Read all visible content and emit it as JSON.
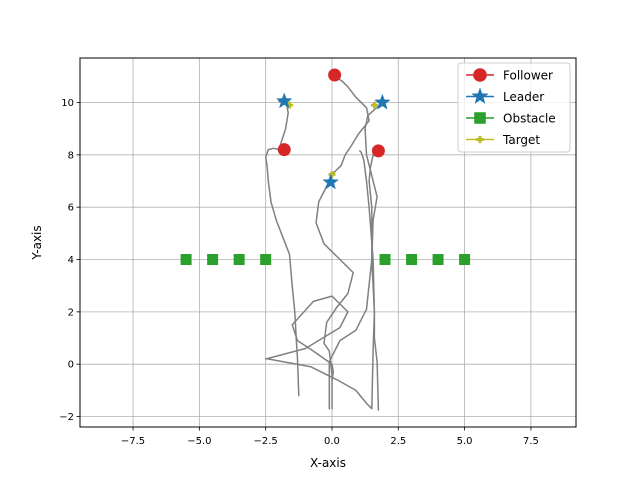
{
  "chart_data": {
    "type": "scatter",
    "title": "",
    "xlabel": "X-axis",
    "ylabel": "Y-axis",
    "xlim": [
      -9.5,
      9.2
    ],
    "ylim": [
      -2.4,
      11.7
    ],
    "xticks": [
      -7.5,
      -5.0,
      -2.5,
      0.0,
      2.5,
      5.0,
      7.5
    ],
    "xtick_labels": [
      "−7.5",
      "−5.0",
      "−2.5",
      "0.0",
      "2.5",
      "5.0",
      "7.5"
    ],
    "yticks": [
      -2,
      0,
      2,
      4,
      6,
      8,
      10
    ],
    "ytick_labels": [
      "−2",
      "0",
      "2",
      "4",
      "6",
      "8",
      "10"
    ],
    "grid": true,
    "legend": {
      "placement": "top-right",
      "entries": [
        {
          "label": "Follower",
          "color": "#d62728",
          "marker": "circle"
        },
        {
          "label": "Leader",
          "color": "#1f77b4",
          "marker": "star"
        },
        {
          "label": "Obstacle",
          "color": "#2ca02c",
          "marker": "square"
        },
        {
          "label": "Target",
          "color": "#bcbd22",
          "marker": "cross"
        }
      ]
    },
    "trajectory_color": "#808080",
    "series": [
      {
        "name": "Follower",
        "color": "#d62728",
        "marker": "circle",
        "x": [
          -1.8,
          0.1,
          1.75
        ],
        "y": [
          8.2,
          11.05,
          8.15
        ]
      },
      {
        "name": "Leader",
        "color": "#1f77b4",
        "marker": "star",
        "x": [
          -1.8,
          1.9,
          -0.05
        ],
        "y": [
          10.05,
          10.0,
          6.95
        ]
      },
      {
        "name": "Obstacle",
        "color": "#2ca02c",
        "marker": "square",
        "x": [
          -5.5,
          -4.5,
          -3.5,
          -2.5,
          2.0,
          3.0,
          4.0,
          5.0
        ],
        "y": [
          4,
          4,
          4,
          4,
          4,
          4,
          4,
          4
        ]
      },
      {
        "name": "Target",
        "color": "#bcbd22",
        "marker": "cross",
        "x": [
          -1.6,
          1.6,
          0.0
        ],
        "y": [
          9.9,
          9.9,
          7.25
        ]
      }
    ],
    "trajectories": [
      {
        "x": [
          -1.25,
          -1.3,
          -1.35,
          -1.4,
          -1.5,
          -1.6,
          -2.1,
          -2.3,
          -2.4,
          -2.45,
          -2.5,
          -2.4,
          -2.2,
          -2.0,
          -1.75,
          -1.65,
          -1.7,
          -2.0,
          -1.8
        ],
        "y": [
          -1.2,
          0.2,
          1.0,
          2.0,
          3.0,
          4.2,
          5.5,
          6.2,
          7.0,
          7.6,
          7.9,
          8.2,
          8.25,
          8.2,
          9.0,
          9.6,
          9.9,
          10.05,
          10.05
        ]
      },
      {
        "x": [
          -0.1,
          -0.1,
          0.3,
          0.9,
          1.3,
          1.5,
          1.55,
          1.7,
          1.3,
          1.25,
          1.35,
          1.8,
          1.9
        ],
        "y": [
          -1.7,
          0.1,
          0.9,
          1.3,
          2.1,
          4.0,
          5.5,
          6.4,
          8.0,
          9.0,
          9.5,
          9.9,
          10.0
        ]
      },
      {
        "x": [
          1.75,
          1.7,
          1.6,
          1.6,
          1.55,
          1.4,
          1.3,
          1.2,
          1.1,
          1.05
        ],
        "y": [
          -1.75,
          0.1,
          1.0,
          2.0,
          4.0,
          6.0,
          7.0,
          7.8,
          8.1,
          8.15
        ]
      },
      {
        "x": [
          -2.4,
          -0.8,
          0.2,
          0.9,
          1.3,
          1.5,
          1.55,
          1.6,
          1.5,
          1.5,
          1.4,
          1.45,
          1.55,
          1.9
        ],
        "y": [
          0.2,
          -0.1,
          -0.6,
          -1.0,
          -1.5,
          -1.7,
          0.5,
          2.0,
          4.0,
          6.0,
          7.0,
          7.5,
          8.0,
          8.15
        ]
      },
      {
        "x": [
          -2.5,
          -1.0,
          0.3,
          0.6,
          0.0,
          -0.7,
          -1.5,
          -1.3,
          -0.7,
          0.0,
          0.05,
          0.0
        ],
        "y": [
          0.2,
          0.6,
          1.4,
          2.0,
          2.6,
          2.4,
          1.5,
          0.9,
          0.5,
          0.0,
          -0.3,
          -0.6
        ]
      },
      {
        "x": [
          0.0,
          0.0,
          -0.1,
          -0.3,
          -0.2,
          0.2,
          0.6,
          0.8,
          0.2,
          -0.3,
          -0.6,
          -0.5,
          -0.15,
          0.05,
          0.35,
          0.5,
          0.7,
          1.0,
          1.4,
          1.3,
          0.9,
          0.6,
          0.4,
          0.2,
          0.1
        ],
        "y": [
          -1.7,
          -0.4,
          0.5,
          0.8,
          1.6,
          2.2,
          2.7,
          3.5,
          4.1,
          4.6,
          5.4,
          6.2,
          6.9,
          7.3,
          7.6,
          8.0,
          8.3,
          8.8,
          9.3,
          9.8,
          10.2,
          10.6,
          10.8,
          10.95,
          11.05
        ]
      }
    ]
  }
}
